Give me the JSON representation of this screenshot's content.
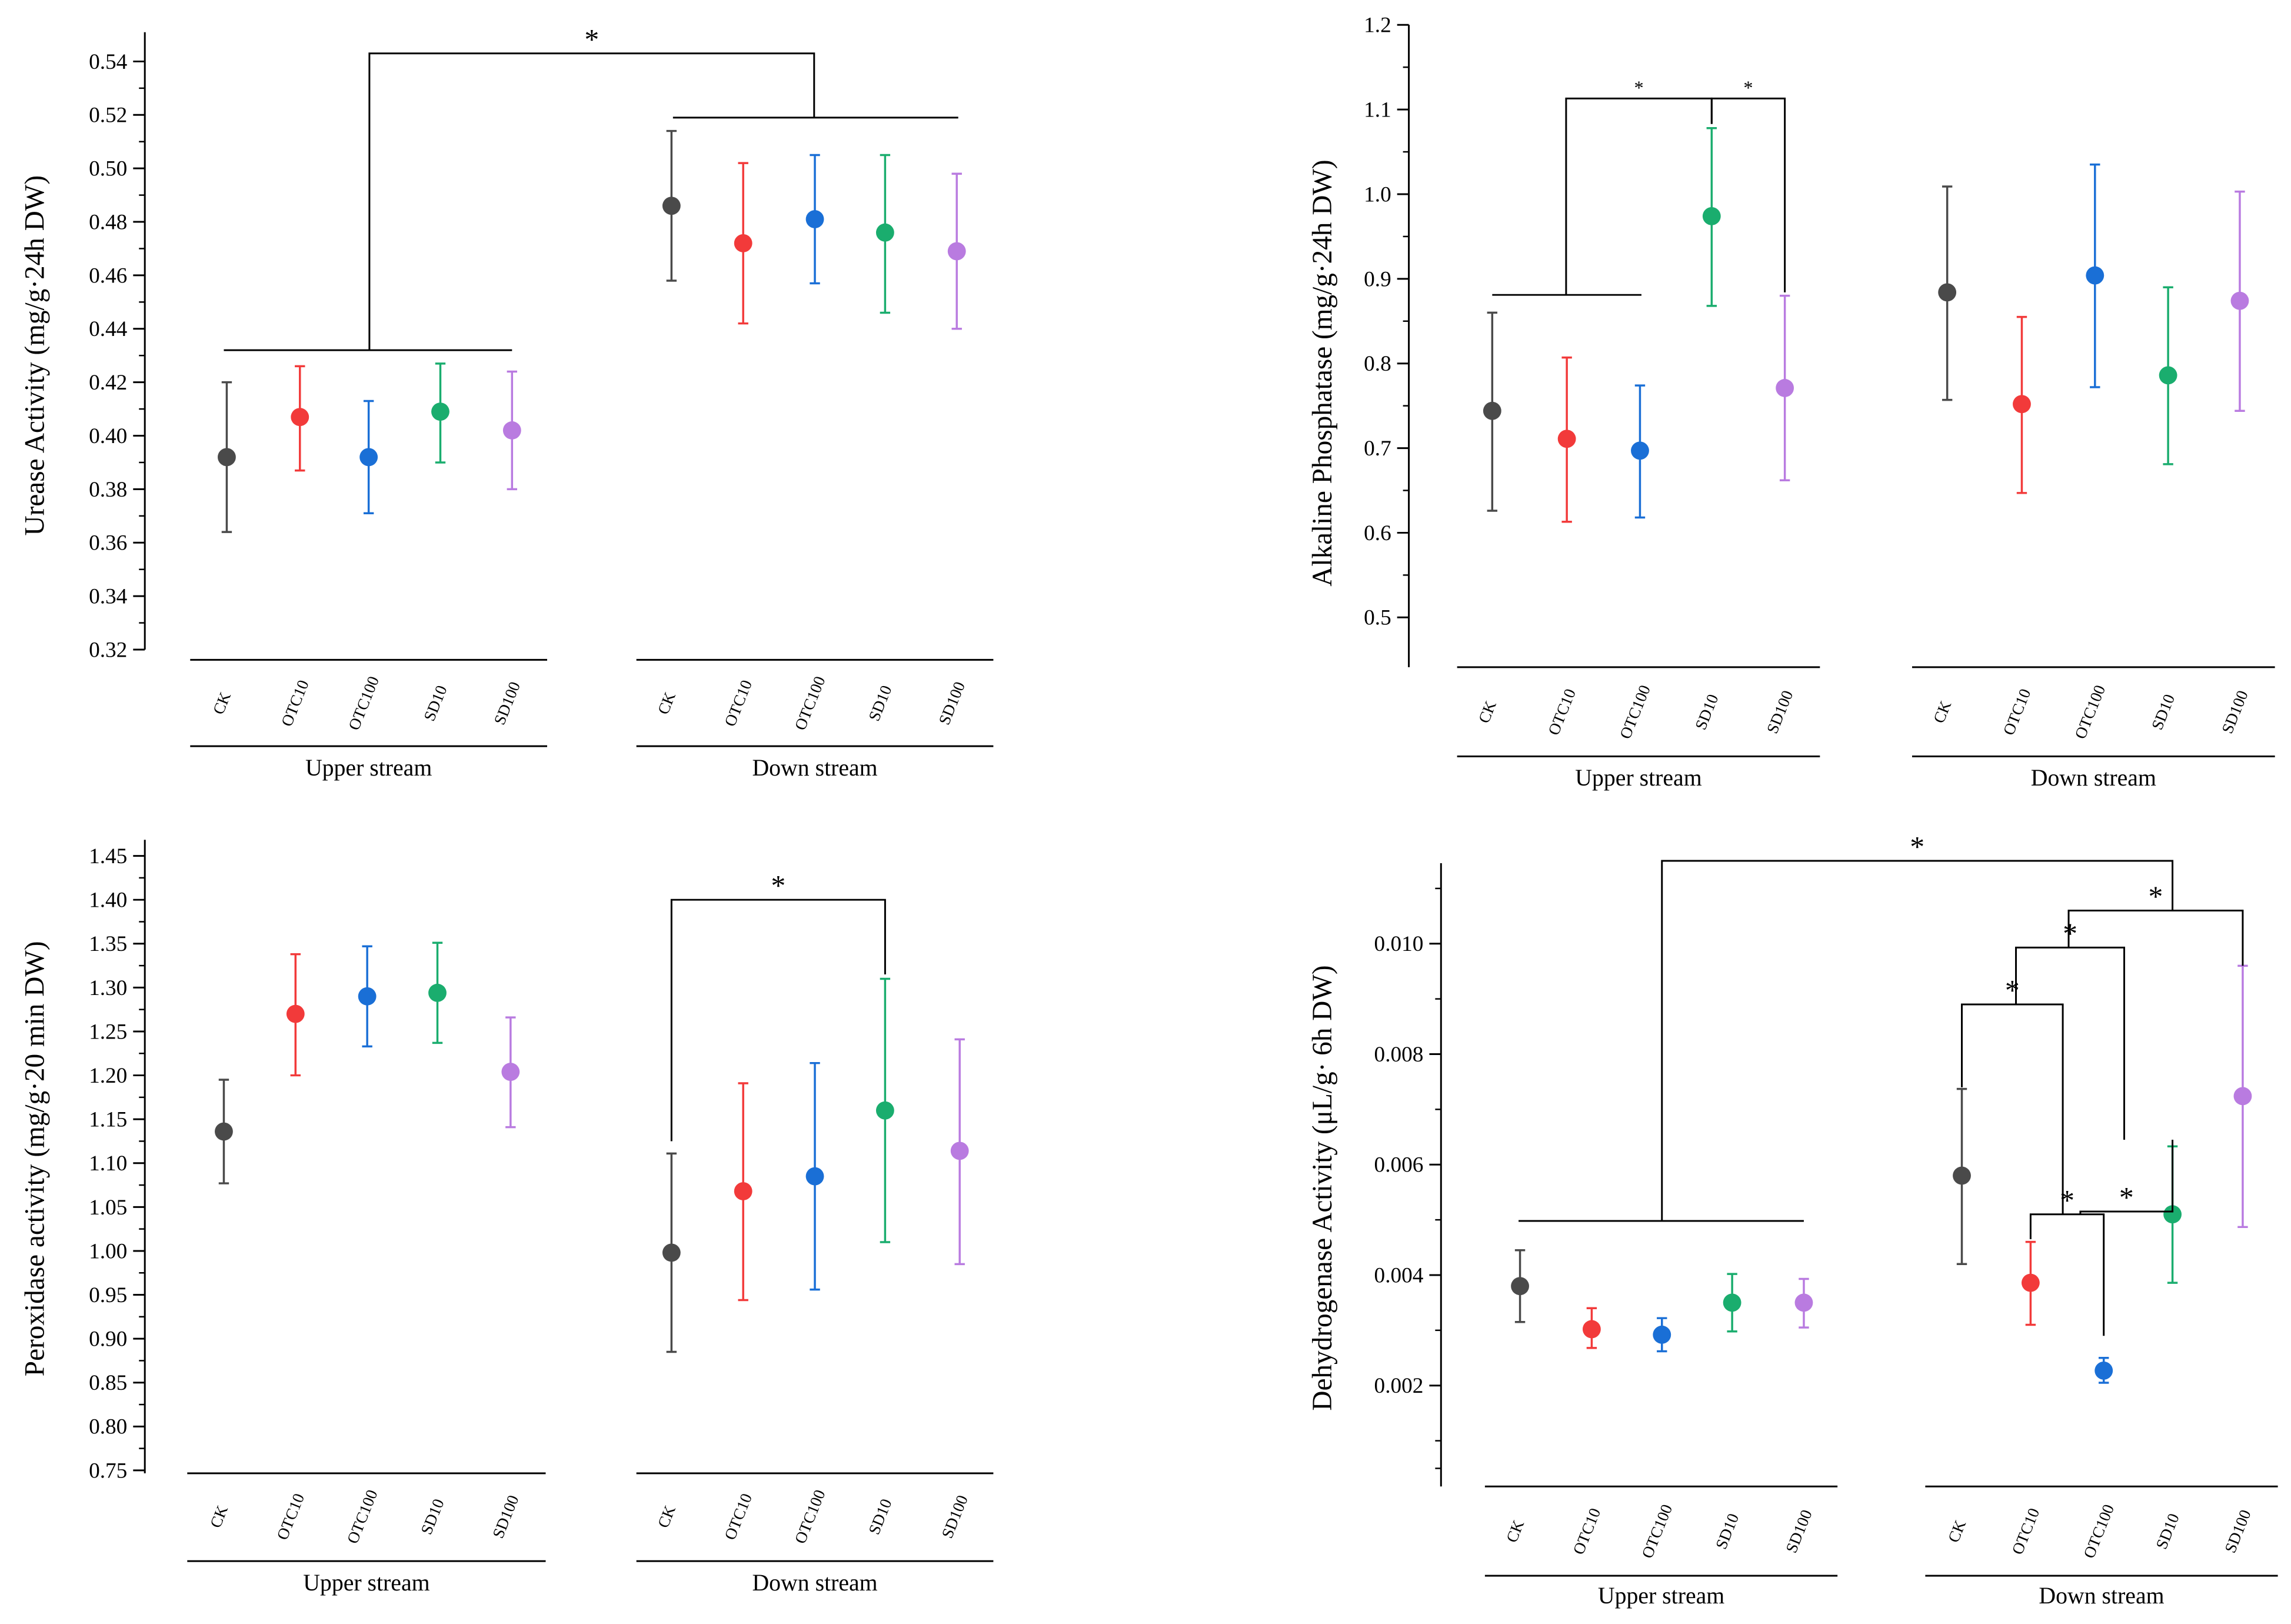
{
  "colors": {
    "CK": "#4a4a4a",
    "OTC10": "#f23a3a",
    "OTC100": "#1a6fd6",
    "SD10": "#1aad6e",
    "SD100": "#b97be0",
    "axis": "#000000"
  },
  "chart_data": [
    {
      "id": "urease",
      "type": "scatter",
      "ylabel": "Urease Activity (mg/g·24h DW)",
      "ylim": [
        0.32,
        0.545
      ],
      "yticks": [
        "0.32",
        "0.34",
        "0.36",
        "0.38",
        "0.40",
        "0.42",
        "0.44",
        "0.46",
        "0.48",
        "0.50",
        "0.52",
        "0.54"
      ],
      "groups": [
        {
          "name": "Upper stream",
          "categories": [
            "CK",
            "OTC10",
            "OTC100",
            "SD10",
            "SD100"
          ],
          "points": [
            {
              "cat": "CK",
              "mean": 0.392,
              "low": 0.364,
              "high": 0.42
            },
            {
              "cat": "OTC10",
              "mean": 0.407,
              "low": 0.387,
              "high": 0.426
            },
            {
              "cat": "OTC100",
              "mean": 0.392,
              "low": 0.371,
              "high": 0.413
            },
            {
              "cat": "SD10",
              "mean": 0.409,
              "low": 0.39,
              "high": 0.427
            },
            {
              "cat": "SD100",
              "mean": 0.402,
              "low": 0.38,
              "high": 0.424
            }
          ]
        },
        {
          "name": "Down stream",
          "categories": [
            "CK",
            "OTC10",
            "OTC100",
            "SD10",
            "SD100"
          ],
          "points": [
            {
              "cat": "CK",
              "mean": 0.486,
              "low": 0.458,
              "high": 0.514
            },
            {
              "cat": "OTC10",
              "mean": 0.472,
              "low": 0.442,
              "high": 0.502
            },
            {
              "cat": "OTC100",
              "mean": 0.481,
              "low": 0.457,
              "high": 0.505
            },
            {
              "cat": "SD10",
              "mean": 0.476,
              "low": 0.446,
              "high": 0.505
            },
            {
              "cat": "SD100",
              "mean": 0.469,
              "low": 0.44,
              "high": 0.498
            }
          ]
        }
      ],
      "annotations": [
        {
          "label": "*",
          "left": {
            "g": 0,
            "i": 0,
            "g2": 0,
            "i2": 4
          },
          "right": {
            "g": 1,
            "i": 0,
            "g2": 1,
            "i2": 4
          },
          "leftY": 0.432,
          "rightY": 0.519,
          "top": 0.543
        }
      ]
    },
    {
      "id": "alkaline",
      "type": "scatter",
      "ylabel": "Alkaline Phosphatase (mg/g·24h DW)",
      "ylim": [
        0.44,
        1.2
      ],
      "yticks": [
        "0.5",
        "0.6",
        "0.7",
        "0.8",
        "0.9",
        "1.0",
        "1.1",
        "1.2"
      ],
      "groups": [
        {
          "name": "Upper stream",
          "categories": [
            "CK",
            "OTC10",
            "OTC100",
            "SD10",
            "SD100"
          ],
          "points": [
            {
              "cat": "CK",
              "mean": 0.744,
              "low": 0.626,
              "high": 0.86
            },
            {
              "cat": "OTC10",
              "mean": 0.711,
              "low": 0.613,
              "high": 0.807
            },
            {
              "cat": "OTC100",
              "mean": 0.697,
              "low": 0.618,
              "high": 0.774
            },
            {
              "cat": "SD10",
              "mean": 0.974,
              "low": 0.868,
              "high": 1.078
            },
            {
              "cat": "SD100",
              "mean": 0.771,
              "low": 0.662,
              "high": 0.88
            }
          ]
        },
        {
          "name": "Down stream",
          "categories": [
            "CK",
            "OTC10",
            "OTC100",
            "SD10",
            "SD100"
          ],
          "points": [
            {
              "cat": "CK",
              "mean": 0.884,
              "low": 0.757,
              "high": 1.009
            },
            {
              "cat": "OTC10",
              "mean": 0.752,
              "low": 0.647,
              "high": 0.855
            },
            {
              "cat": "OTC100",
              "mean": 0.904,
              "low": 0.772,
              "high": 1.035
            },
            {
              "cat": "SD10",
              "mean": 0.786,
              "low": 0.681,
              "high": 0.89
            },
            {
              "cat": "SD100",
              "mean": 0.874,
              "low": 0.744,
              "high": 1.003
            }
          ]
        }
      ],
      "annotations": [
        {
          "label": "*",
          "left": {
            "g": 0,
            "i": 0,
            "g2": 0,
            "i2": 2
          },
          "right": {
            "g": 0,
            "i": 3
          },
          "leftY": 0.881,
          "rightY": 1.083,
          "top": 1.113
        },
        {
          "label": "*",
          "left": {
            "g": 0,
            "i": 3
          },
          "right": {
            "g": 0,
            "i": 4
          },
          "leftY": 1.083,
          "rightY": 0.884,
          "top": 1.113
        }
      ]
    },
    {
      "id": "peroxidase",
      "type": "scatter",
      "ylabel": "Peroxidase activity (mg/g·20 min DW)",
      "ylim": [
        0.75,
        1.475
      ],
      "yticks": [
        "0.75",
        "0.80",
        "0.85",
        "0.90",
        "0.95",
        "1.00",
        "1.05",
        "1.10",
        "1.15",
        "1.20",
        "1.25",
        "1.30",
        "1.35",
        "1.40",
        "1.45"
      ],
      "groups": [
        {
          "name": "Upper stream",
          "categories": [
            "CK",
            "OTC10",
            "OTC100",
            "SD10",
            "SD100"
          ],
          "points": [
            {
              "cat": "CK",
              "mean": 1.136,
              "low": 1.077,
              "high": 1.195
            },
            {
              "cat": "OTC10",
              "mean": 1.27,
              "low": 1.2,
              "high": 1.338
            },
            {
              "cat": "OTC100",
              "mean": 1.29,
              "low": 1.233,
              "high": 1.347
            },
            {
              "cat": "SD10",
              "mean": 1.294,
              "low": 1.237,
              "high": 1.351
            },
            {
              "cat": "SD100",
              "mean": 1.204,
              "low": 1.141,
              "high": 1.266
            }
          ]
        },
        {
          "name": "Down stream",
          "categories": [
            "CK",
            "OTC10",
            "OTC100",
            "SD10",
            "SD100"
          ],
          "points": [
            {
              "cat": "CK",
              "mean": 0.998,
              "low": 0.885,
              "high": 1.111
            },
            {
              "cat": "OTC10",
              "mean": 1.068,
              "low": 0.944,
              "high": 1.191
            },
            {
              "cat": "OTC100",
              "mean": 1.085,
              "low": 0.956,
              "high": 1.214
            },
            {
              "cat": "SD10",
              "mean": 1.16,
              "low": 1.01,
              "high": 1.31
            },
            {
              "cat": "SD100",
              "mean": 1.114,
              "low": 0.985,
              "high": 1.241
            }
          ]
        }
      ],
      "annotations": [
        {
          "label": "*",
          "left": {
            "g": 1,
            "i": 0
          },
          "right": {
            "g": 1,
            "i": 3
          },
          "leftY": 1.125,
          "rightY": 1.315,
          "top": 1.4
        }
      ]
    },
    {
      "id": "dehydrogenase",
      "type": "scatter",
      "ylabel": "Dehydrogenase Activity (μL/g· 6h DW)",
      "ylim": [
        0.0002,
        0.0115
      ],
      "yticks": [
        "0.002",
        "0.004",
        "0.006",
        "0.008",
        "0.010"
      ],
      "groups": [
        {
          "name": "Upper stream",
          "categories": [
            "CK",
            "OTC10",
            "OTC100",
            "SD10",
            "SD100"
          ],
          "points": [
            {
              "cat": "CK",
              "mean": 0.0038,
              "low": 0.00315,
              "high": 0.00445
            },
            {
              "cat": "OTC10",
              "mean": 0.00302,
              "low": 0.00268,
              "high": 0.0034
            },
            {
              "cat": "OTC100",
              "mean": 0.00292,
              "low": 0.00262,
              "high": 0.00322
            },
            {
              "cat": "SD10",
              "mean": 0.0035,
              "low": 0.00298,
              "high": 0.00402
            },
            {
              "cat": "SD100",
              "mean": 0.0035,
              "low": 0.00305,
              "high": 0.00393
            }
          ]
        },
        {
          "name": "Down stream",
          "categories": [
            "CK",
            "OTC10",
            "OTC100",
            "SD10",
            "SD100"
          ],
          "points": [
            {
              "cat": "CK",
              "mean": 0.0058,
              "low": 0.0042,
              "high": 0.00737
            },
            {
              "cat": "OTC10",
              "mean": 0.00386,
              "low": 0.0031,
              "high": 0.0046
            },
            {
              "cat": "OTC100",
              "mean": 0.00227,
              "low": 0.00205,
              "high": 0.0025
            },
            {
              "cat": "SD10",
              "mean": 0.0051,
              "low": 0.00386,
              "high": 0.00633
            },
            {
              "cat": "SD100",
              "mean": 0.00724,
              "low": 0.00487,
              "high": 0.0096
            }
          ]
        }
      ],
      "annotations": [
        {
          "label": "*",
          "left": {
            "g": 0,
            "i": 0,
            "g2": 0,
            "i2": 4
          },
          "right": {
            "g": 1,
            "i": 3
          },
          "leftY": 0.00498,
          "rightY": 0.0106,
          "top": 0.0115
        },
        {
          "label": "*",
          "left": {
            "g": 1,
            "i": 1
          },
          "right": {
            "g": 1,
            "i": 2
          },
          "leftY": 0.00465,
          "rightY": 0.0029,
          "top": 0.0051
        },
        {
          "label": "*",
          "left": {
            "g": 1,
            "i": 0
          },
          "right": {
            "g": 1,
            "i": 1,
            "x": 1410
          },
          "leftY": 0.0074,
          "rightY": 0.0051,
          "top": 0.0089
        },
        {
          "label": "*",
          "left": {
            "g": 1,
            "i": 2,
            "x": 1422
          },
          "right": {
            "g": 1,
            "i": 3
          },
          "leftY": 0.0051,
          "rightY": 0.00645,
          "top": 0.00515
        },
        {
          "label": "*",
          "left": {
            "g": 1,
            "i": 0,
            "x": 1378
          },
          "right": {
            "g": 1,
            "i": 2,
            "x": 1452
          },
          "leftY": 0.0089,
          "rightY": 0.00645,
          "top": 0.00993
        },
        {
          "label": "*",
          "left": {
            "g": 1,
            "i": 1,
            "x": 1414
          },
          "right": {
            "g": 1,
            "i": 4
          },
          "leftY": 0.00993,
          "rightY": 0.0096,
          "top": 0.0106
        }
      ]
    }
  ]
}
